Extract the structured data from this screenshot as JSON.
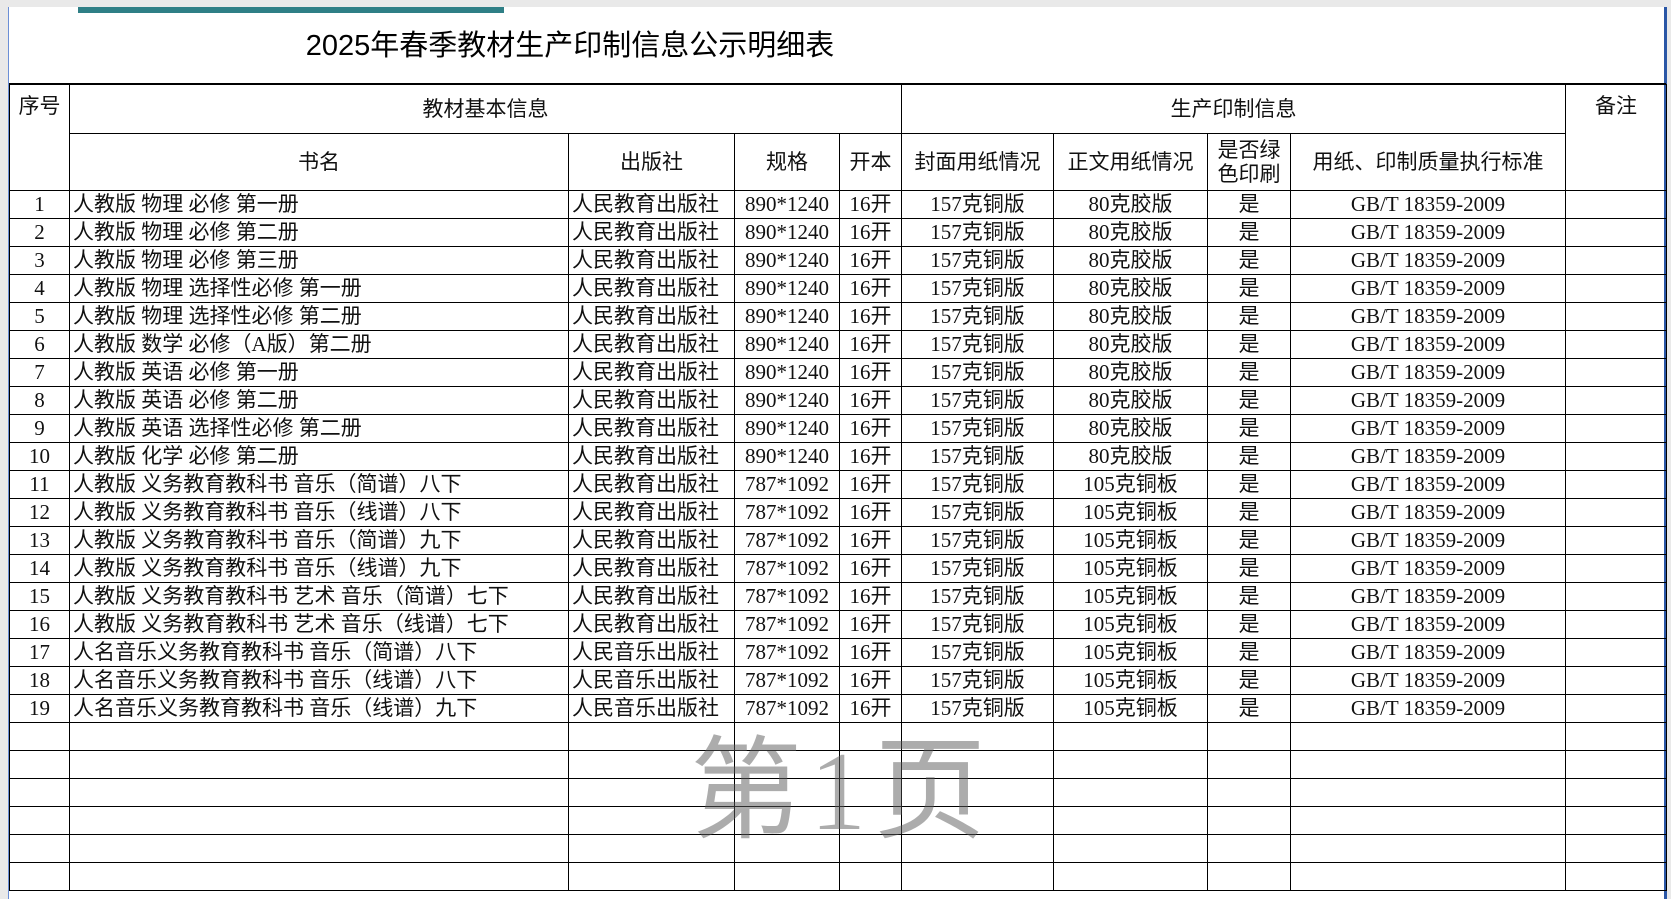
{
  "title": "2025年春季教材生产印制信息公示明细表",
  "headers": {
    "seq": "序号",
    "group_basic": "教材基本信息",
    "group_print": "生产印制信息",
    "remark": "备注",
    "book": "书名",
    "publisher": "出版社",
    "spec": "规格",
    "format": "开本",
    "cover": "封面用纸情况",
    "body": "正文用纸情况",
    "green_1": "是否绿",
    "green_2": "色印刷",
    "standard": "用纸、印制质量执行标准"
  },
  "rows": [
    [
      "1",
      "人教版 物理 必修 第一册",
      "人民教育出版社",
      "890*1240",
      "16开",
      "157克铜版",
      "80克胶版",
      "是",
      "GB/T 18359-2009"
    ],
    [
      "2",
      "人教版 物理 必修 第二册",
      "人民教育出版社",
      "890*1240",
      "16开",
      "157克铜版",
      "80克胶版",
      "是",
      "GB/T 18359-2009"
    ],
    [
      "3",
      "人教版 物理 必修 第三册",
      "人民教育出版社",
      "890*1240",
      "16开",
      "157克铜版",
      "80克胶版",
      "是",
      "GB/T 18359-2009"
    ],
    [
      "4",
      "人教版 物理 选择性必修 第一册",
      "人民教育出版社",
      "890*1240",
      "16开",
      "157克铜版",
      "80克胶版",
      "是",
      "GB/T 18359-2009"
    ],
    [
      "5",
      "人教版 物理 选择性必修 第二册",
      "人民教育出版社",
      "890*1240",
      "16开",
      "157克铜版",
      "80克胶版",
      "是",
      "GB/T 18359-2009"
    ],
    [
      "6",
      "人教版 数学 必修（A版）第二册",
      "人民教育出版社",
      "890*1240",
      "16开",
      "157克铜版",
      "80克胶版",
      "是",
      "GB/T 18359-2009"
    ],
    [
      "7",
      "人教版 英语 必修 第一册",
      "人民教育出版社",
      "890*1240",
      "16开",
      "157克铜版",
      "80克胶版",
      "是",
      "GB/T 18359-2009"
    ],
    [
      "8",
      "人教版 英语 必修 第二册",
      "人民教育出版社",
      "890*1240",
      "16开",
      "157克铜版",
      "80克胶版",
      "是",
      "GB/T 18359-2009"
    ],
    [
      "9",
      "人教版 英语 选择性必修 第二册",
      "人民教育出版社",
      "890*1240",
      "16开",
      "157克铜版",
      "80克胶版",
      "是",
      "GB/T 18359-2009"
    ],
    [
      "10",
      "人教版 化学 必修 第二册",
      "人民教育出版社",
      "890*1240",
      "16开",
      "157克铜版",
      "80克胶版",
      "是",
      "GB/T 18359-2009"
    ],
    [
      "11",
      "人教版 义务教育教科书 音乐（简谱）八下",
      "人民教育出版社",
      "787*1092",
      "16开",
      "157克铜版",
      "105克铜板",
      "是",
      "GB/T 18359-2009"
    ],
    [
      "12",
      "人教版 义务教育教科书 音乐（线谱）八下",
      "人民教育出版社",
      "787*1092",
      "16开",
      "157克铜版",
      "105克铜板",
      "是",
      "GB/T 18359-2009"
    ],
    [
      "13",
      "人教版 义务教育教科书 音乐（简谱）九下",
      "人民教育出版社",
      "787*1092",
      "16开",
      "157克铜版",
      "105克铜板",
      "是",
      "GB/T 18359-2009"
    ],
    [
      "14",
      "人教版 义务教育教科书 音乐（线谱）九下",
      "人民教育出版社",
      "787*1092",
      "16开",
      "157克铜版",
      "105克铜板",
      "是",
      "GB/T 18359-2009"
    ],
    [
      "15",
      "人教版 义务教育教科书 艺术 音乐（简谱）七下",
      "人民教育出版社",
      "787*1092",
      "16开",
      "157克铜版",
      "105克铜板",
      "是",
      "GB/T 18359-2009"
    ],
    [
      "16",
      "人教版 义务教育教科书 艺术 音乐（线谱）七下",
      "人民教育出版社",
      "787*1092",
      "16开",
      "157克铜版",
      "105克铜板",
      "是",
      "GB/T 18359-2009"
    ],
    [
      "17",
      "人名音乐义务教育教科书  音乐（简谱）八下",
      "人民音乐出版社",
      "787*1092",
      "16开",
      "157克铜版",
      "105克铜板",
      "是",
      "GB/T 18359-2009"
    ],
    [
      "18",
      "人名音乐义务教育教科书  音乐（线谱）八下",
      "人民音乐出版社",
      "787*1092",
      "16开",
      "157克铜版",
      "105克铜板",
      "是",
      "GB/T 18359-2009"
    ],
    [
      "19",
      "人名音乐义务教育教科书  音乐（线谱）九下",
      "人民音乐出版社",
      "787*1092",
      "16开",
      "157克铜版",
      "105克铜板",
      "是",
      "GB/T 18359-2009"
    ]
  ],
  "empty_rows": 6,
  "watermark": "第1页"
}
